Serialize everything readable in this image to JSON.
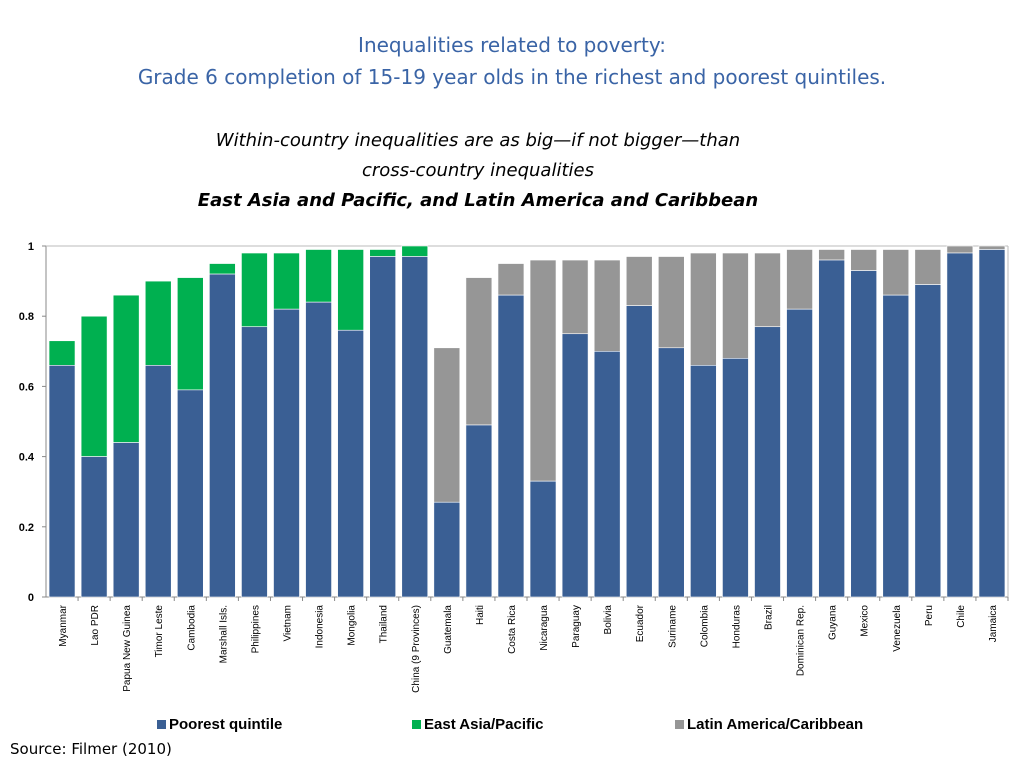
{
  "title_line1": "Inequalities related to poverty:",
  "title_line2": "Grade 6 completion of 15-19 year olds in the richest and poorest quintiles.",
  "subtitle_line1": "Within-country inequalities are as big—if not bigger—than",
  "subtitle_line2": "cross-country inequalities",
  "subtitle_line3": "East Asia and Pacific, and Latin America and Caribbean",
  "source": "Source: Filmer (2010)",
  "chart_data": {
    "type": "bar",
    "stacked": true,
    "ylim": [
      0,
      1
    ],
    "yticks": [
      "0",
      "0.2",
      "0.4",
      "0.6",
      "0.8",
      "1"
    ],
    "categories": [
      "Myanmar",
      "Lao PDR",
      "Papua New Guinea",
      "Timor Leste",
      "Cambodia",
      "Marshall Isls.",
      "Philippines",
      "Vietnam",
      "Indonesia",
      "Mongolia",
      "Thailand",
      "China (9 Provinces)",
      "Guatemala",
      "Haiti",
      "Costa Rica",
      "Nicaragua",
      "Paraguay",
      "Bolivia",
      "Ecuador",
      "Suriname",
      "Colombia",
      "Honduras",
      "Brazil",
      "Dominican Rep.",
      "Guyana",
      "Mexico",
      "Venezuela",
      "Peru",
      "Chile",
      "Jamaica"
    ],
    "region": [
      "EAP",
      "EAP",
      "EAP",
      "EAP",
      "EAP",
      "EAP",
      "EAP",
      "EAP",
      "EAP",
      "EAP",
      "EAP",
      "EAP",
      "LAC",
      "LAC",
      "LAC",
      "LAC",
      "LAC",
      "LAC",
      "LAC",
      "LAC",
      "LAC",
      "LAC",
      "LAC",
      "LAC",
      "LAC",
      "LAC",
      "LAC",
      "LAC",
      "LAC",
      "LAC"
    ],
    "poorest": [
      0.66,
      0.4,
      0.44,
      0.66,
      0.59,
      0.92,
      0.77,
      0.82,
      0.84,
      0.76,
      0.97,
      0.97,
      0.27,
      0.49,
      0.86,
      0.33,
      0.75,
      0.7,
      0.83,
      0.71,
      0.66,
      0.68,
      0.77,
      0.82,
      0.96,
      0.93,
      0.86,
      0.89,
      0.98,
      0.99
    ],
    "richest": [
      0.73,
      0.8,
      0.86,
      0.9,
      0.91,
      0.95,
      0.98,
      0.98,
      0.99,
      0.99,
      0.99,
      1.0,
      0.71,
      0.91,
      0.95,
      0.96,
      0.96,
      0.96,
      0.97,
      0.97,
      0.98,
      0.98,
      0.98,
      0.99,
      0.99,
      0.99,
      0.99,
      0.99,
      1.0,
      1.0
    ],
    "series": [
      {
        "name": "Poorest quintile",
        "color": "#3a5f94"
      },
      {
        "name": "East Asia/Pacific",
        "color": "#00b050"
      },
      {
        "name": "Latin America/Caribbean",
        "color": "#969696"
      }
    ],
    "legend_position": "bottom"
  }
}
